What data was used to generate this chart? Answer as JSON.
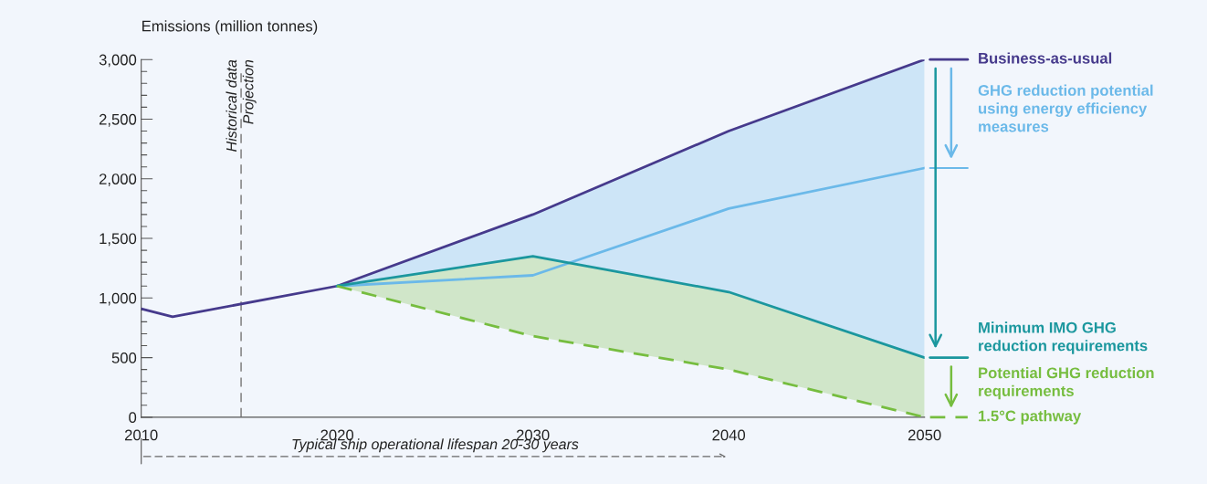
{
  "chart_data": {
    "type": "line",
    "ylabel": "Emissions (million tonnes)",
    "xlim": [
      2010,
      2050
    ],
    "xticks": [
      2010,
      2020,
      2030,
      2040,
      2050
    ],
    "ylim": [
      0,
      3000
    ],
    "yticks": [
      0,
      {
        "value": 100,
        "label": null
      },
      {
        "value": 200,
        "label": null
      },
      {
        "value": 300,
        "label": null
      },
      {
        "value": 400,
        "label": null
      },
      {
        "value": 500,
        "label": "500"
      },
      {
        "value": 600,
        "label": null
      },
      {
        "value": 700,
        "label": null
      },
      {
        "value": 800,
        "label": null
      },
      {
        "value": 900,
        "label": null
      },
      {
        "value": 1000,
        "label": "1,000"
      },
      {
        "value": 1100,
        "label": null
      },
      {
        "value": 1200,
        "label": null
      },
      {
        "value": 1300,
        "label": null
      },
      {
        "value": 1400,
        "label": null
      },
      {
        "value": 1500,
        "label": "1,500"
      },
      {
        "value": 1600,
        "label": null
      },
      {
        "value": 1700,
        "label": null
      },
      {
        "value": 1800,
        "label": null
      },
      {
        "value": 1900,
        "label": null
      },
      {
        "value": 2000,
        "label": "2,000"
      },
      {
        "value": 2100,
        "label": null
      },
      {
        "value": 2200,
        "label": null
      },
      {
        "value": 2300,
        "label": null
      },
      {
        "value": 2400,
        "label": null
      },
      {
        "value": 2500,
        "label": "2,500"
      },
      {
        "value": 2600,
        "label": null
      },
      {
        "value": 2700,
        "label": null
      },
      {
        "value": 2800,
        "label": null
      },
      {
        "value": 2900,
        "label": null
      },
      {
        "value": 3000,
        "label": "3,000"
      }
    ],
    "grid": false,
    "legend": "right",
    "series": [
      {
        "name": "Business-as-usual",
        "color": "#463a8c",
        "x": [
          2010,
          2011.6,
          2020,
          2030,
          2040,
          2050
        ],
        "values": [
          910,
          842,
          1100,
          1700,
          2400,
          3000
        ]
      },
      {
        "color": "#6bb9e9",
        "x": [
          2020,
          2030,
          2040,
          2050
        ],
        "values": [
          1100,
          1190,
          1750,
          2090
        ],
        "lower": [
          1100,
          1350,
          1050,
          500
        ],
        "upper": [
          1100,
          1700,
          2400,
          3000
        ]
      },
      {
        "name": "Minimum IMO GHG\nreduction requirements",
        "color": "#1b979e",
        "x": [
          2020,
          2030,
          2040,
          2050
        ],
        "values": [
          1100,
          1350,
          1050,
          500
        ]
      },
      {
        "name": "1.5°C pathway",
        "color": "#76bd3f",
        "line_style": "dashed",
        "x": [
          2020,
          2030,
          2040,
          2050
        ],
        "values": [
          1100,
          680,
          400,
          0
        ],
        "lower": [
          1100,
          680,
          400,
          0
        ],
        "upper": [
          1100,
          1350,
          1050,
          500
        ]
      }
    ],
    "ref_lines": [
      {
        "axis": "x",
        "value": 2015.1,
        "label": "Historical data",
        "color": "#8a8a8a",
        "line_style": "dashed"
      }
    ],
    "annotations": [
      "Projection",
      "GHG reduction potential\nusing energy efficiency\nmeasures",
      "Potential GHG reduction\nrequirements",
      "Typical ship operational lifespan 20-30 years"
    ]
  }
}
